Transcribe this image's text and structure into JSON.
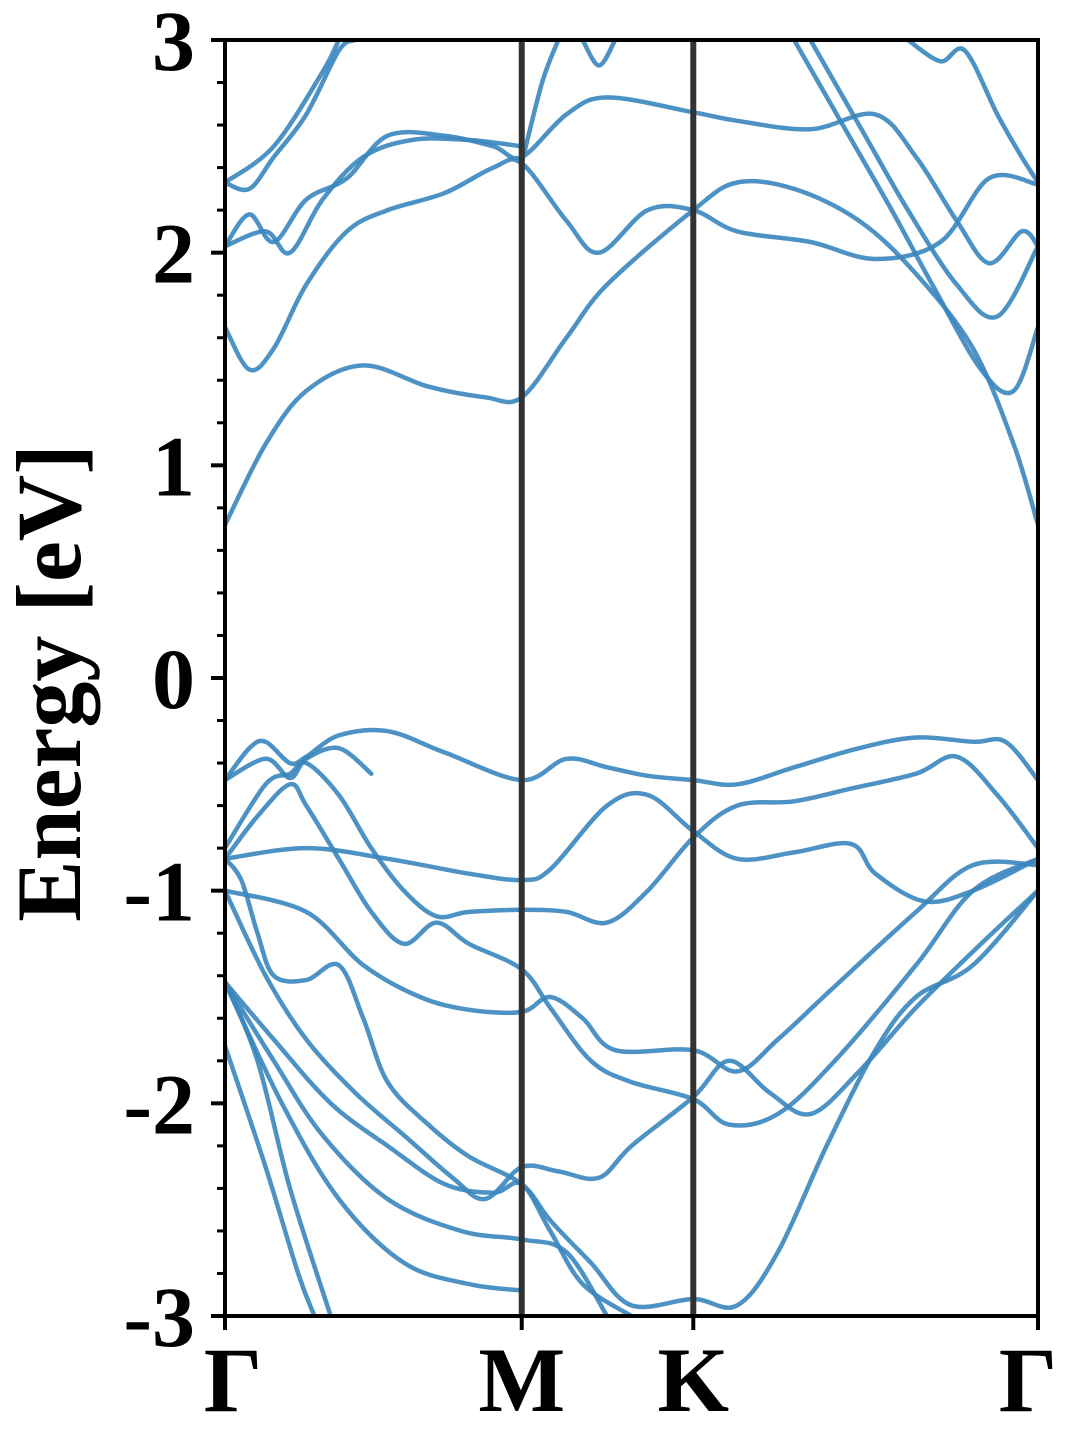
{
  "chart_data": {
    "type": "line",
    "ylabel": "Energy [eV]",
    "ylim": [
      -3,
      3
    ],
    "yticks": [
      "-3",
      "-2",
      "-1",
      "0",
      "1",
      "2",
      "3"
    ],
    "xlim": [
      0,
      1
    ],
    "kpath": [
      {
        "label": "Γ",
        "x": 0.0
      },
      {
        "label": "M",
        "x": 0.365
      },
      {
        "label": "K",
        "x": 0.576
      },
      {
        "label": "Γ",
        "x": 1.0
      }
    ],
    "line_color": "#3a86be",
    "grid": false,
    "series": [
      {
        "values": [
          [
            0,
            -1.73
          ],
          [
            0.05,
            -2.3
          ],
          [
            0.09,
            -2.8
          ],
          [
            0.11,
            -3.0
          ]
        ]
      },
      {
        "values": [
          [
            0,
            -1.43
          ],
          [
            0.04,
            -1.8
          ],
          [
            0.08,
            -2.4
          ],
          [
            0.13,
            -3.0
          ]
        ]
      },
      {
        "values": [
          [
            0,
            -1.43
          ],
          [
            0.07,
            -2.0
          ],
          [
            0.14,
            -2.45
          ],
          [
            0.22,
            -2.75
          ],
          [
            0.3,
            -2.85
          ],
          [
            0.365,
            -2.88
          ]
        ]
      },
      {
        "values": [
          [
            0,
            -1.43
          ],
          [
            0.06,
            -1.8
          ],
          [
            0.12,
            -2.15
          ],
          [
            0.2,
            -2.45
          ],
          [
            0.29,
            -2.6
          ],
          [
            0.365,
            -2.64
          ],
          [
            0.42,
            -2.7
          ],
          [
            0.47,
            -3.0
          ]
        ]
      },
      {
        "values": [
          [
            0,
            -1.43
          ],
          [
            0.06,
            -1.7
          ],
          [
            0.13,
            -2.0
          ],
          [
            0.2,
            -2.2
          ],
          [
            0.27,
            -2.38
          ],
          [
            0.33,
            -2.42
          ],
          [
            0.365,
            -2.38
          ],
          [
            0.4,
            -2.6
          ],
          [
            0.44,
            -2.85
          ],
          [
            0.5,
            -3.0
          ]
        ]
      },
      {
        "values": [
          [
            0,
            -1.0
          ],
          [
            0.05,
            -1.4
          ],
          [
            0.1,
            -1.7
          ],
          [
            0.16,
            -1.95
          ],
          [
            0.22,
            -2.15
          ],
          [
            0.28,
            -2.35
          ],
          [
            0.32,
            -2.45
          ],
          [
            0.365,
            -2.3
          ],
          [
            0.41,
            -2.32
          ],
          [
            0.46,
            -2.35
          ],
          [
            0.5,
            -2.2
          ],
          [
            0.576,
            -1.97
          ],
          [
            0.62,
            -1.8
          ],
          [
            0.67,
            -1.95
          ],
          [
            0.72,
            -2.05
          ],
          [
            0.78,
            -1.85
          ],
          [
            0.85,
            -1.55
          ],
          [
            0.93,
            -1.25
          ],
          [
            1.0,
            -1.0
          ]
        ]
      },
      {
        "values": [
          [
            0,
            -0.85
          ],
          [
            0.02,
            -0.95
          ],
          [
            0.04,
            -1.2
          ],
          [
            0.06,
            -1.4
          ],
          [
            0.1,
            -1.42
          ],
          [
            0.14,
            -1.35
          ],
          [
            0.17,
            -1.6
          ],
          [
            0.2,
            -1.9
          ],
          [
            0.25,
            -2.1
          ],
          [
            0.3,
            -2.25
          ],
          [
            0.365,
            -2.38
          ],
          [
            0.4,
            -2.55
          ],
          [
            0.45,
            -2.75
          ],
          [
            0.5,
            -2.95
          ],
          [
            0.576,
            -2.92
          ],
          [
            0.63,
            -2.95
          ],
          [
            0.68,
            -2.7
          ],
          [
            0.74,
            -2.2
          ],
          [
            0.8,
            -1.75
          ],
          [
            0.85,
            -1.5
          ],
          [
            0.92,
            -1.35
          ],
          [
            1.0,
            -1.0
          ]
        ]
      },
      {
        "values": [
          [
            0,
            -1.0
          ],
          [
            0.1,
            -1.1
          ],
          [
            0.17,
            -1.35
          ],
          [
            0.24,
            -1.5
          ],
          [
            0.3,
            -1.56
          ],
          [
            0.365,
            -1.57
          ],
          [
            0.4,
            -1.5
          ],
          [
            0.44,
            -1.6
          ],
          [
            0.48,
            -1.75
          ],
          [
            0.576,
            -1.75
          ],
          [
            0.63,
            -1.85
          ],
          [
            0.68,
            -1.7
          ],
          [
            0.75,
            -1.45
          ],
          [
            0.85,
            -1.1
          ],
          [
            0.92,
            -0.88
          ],
          [
            1.0,
            -0.88
          ]
        ]
      },
      {
        "values": [
          [
            0,
            -0.85
          ],
          [
            0.04,
            -0.65
          ],
          [
            0.08,
            -0.5
          ],
          [
            0.1,
            -0.6
          ],
          [
            0.14,
            -0.85
          ],
          [
            0.18,
            -1.1
          ],
          [
            0.22,
            -1.25
          ],
          [
            0.26,
            -1.15
          ],
          [
            0.3,
            -1.25
          ],
          [
            0.365,
            -1.37
          ],
          [
            0.4,
            -1.55
          ],
          [
            0.45,
            -1.8
          ],
          [
            0.5,
            -1.9
          ],
          [
            0.576,
            -1.98
          ],
          [
            0.62,
            -2.1
          ],
          [
            0.68,
            -2.05
          ],
          [
            0.75,
            -1.8
          ],
          [
            0.85,
            -1.35
          ],
          [
            0.92,
            -1.0
          ],
          [
            1.0,
            -0.85
          ]
        ]
      },
      {
        "values": [
          [
            0,
            -0.85
          ],
          [
            0.1,
            -0.8
          ],
          [
            0.2,
            -0.85
          ],
          [
            0.3,
            -0.92
          ],
          [
            0.365,
            -0.95
          ],
          [
            0.4,
            -0.9
          ],
          [
            0.47,
            -0.6
          ],
          [
            0.52,
            -0.55
          ],
          [
            0.576,
            -0.72
          ],
          [
            0.63,
            -0.85
          ],
          [
            0.7,
            -0.82
          ],
          [
            0.77,
            -0.78
          ],
          [
            0.8,
            -0.92
          ],
          [
            0.86,
            -1.05
          ],
          [
            0.92,
            -1.0
          ],
          [
            1.0,
            -0.85
          ]
        ]
      },
      {
        "values": [
          [
            0,
            -0.8
          ],
          [
            0.05,
            -0.5
          ],
          [
            0.08,
            -0.45
          ],
          [
            0.1,
            -0.4
          ],
          [
            0.14,
            -0.55
          ],
          [
            0.18,
            -0.8
          ],
          [
            0.22,
            -1.0
          ],
          [
            0.26,
            -1.12
          ],
          [
            0.3,
            -1.1
          ],
          [
            0.365,
            -1.09
          ],
          [
            0.42,
            -1.1
          ],
          [
            0.47,
            -1.15
          ],
          [
            0.52,
            -1.0
          ],
          [
            0.576,
            -0.75
          ],
          [
            0.63,
            -0.6
          ],
          [
            0.7,
            -0.58
          ],
          [
            0.77,
            -0.52
          ],
          [
            0.85,
            -0.45
          ],
          [
            0.9,
            -0.37
          ],
          [
            0.95,
            -0.55
          ],
          [
            1.0,
            -0.8
          ]
        ]
      },
      {
        "values": [
          [
            0,
            -0.48
          ],
          [
            0.03,
            -0.33
          ],
          [
            0.05,
            -0.3
          ],
          [
            0.08,
            -0.4
          ],
          [
            0.1,
            -0.37
          ],
          [
            0.14,
            -0.27
          ],
          [
            0.2,
            -0.25
          ],
          [
            0.27,
            -0.35
          ],
          [
            0.365,
            -0.48
          ],
          [
            0.42,
            -0.38
          ],
          [
            0.47,
            -0.42
          ],
          [
            0.52,
            -0.46
          ],
          [
            0.576,
            -0.48
          ],
          [
            0.63,
            -0.5
          ],
          [
            0.7,
            -0.42
          ],
          [
            0.78,
            -0.33
          ],
          [
            0.85,
            -0.28
          ],
          [
            0.92,
            -0.3
          ],
          [
            0.96,
            -0.3
          ],
          [
            1.0,
            -0.48
          ]
        ]
      },
      {
        "values": [
          [
            0,
            -0.48
          ],
          [
            0.05,
            -0.38
          ],
          [
            0.08,
            -0.47
          ],
          [
            0.1,
            -0.38
          ],
          [
            0.14,
            -0.33
          ],
          [
            0.18,
            -0.45
          ]
        ]
      },
      {
        "values": [
          [
            0,
            0.72
          ],
          [
            0.05,
            1.1
          ],
          [
            0.1,
            1.35
          ],
          [
            0.17,
            1.47
          ],
          [
            0.25,
            1.37
          ],
          [
            0.32,
            1.32
          ],
          [
            0.365,
            1.32
          ],
          [
            0.42,
            1.6
          ],
          [
            0.47,
            1.85
          ],
          [
            0.576,
            2.2
          ],
          [
            0.63,
            2.33
          ],
          [
            0.7,
            2.3
          ],
          [
            0.78,
            2.15
          ],
          [
            0.85,
            1.9
          ],
          [
            0.92,
            1.55
          ],
          [
            0.97,
            1.1
          ],
          [
            1.0,
            0.72
          ]
        ]
      },
      {
        "values": [
          [
            0,
            1.65
          ],
          [
            0.03,
            1.45
          ],
          [
            0.06,
            1.55
          ],
          [
            0.1,
            1.85
          ],
          [
            0.15,
            2.1
          ],
          [
            0.2,
            2.2
          ],
          [
            0.27,
            2.28
          ],
          [
            0.33,
            2.4
          ],
          [
            0.365,
            2.42
          ],
          [
            0.42,
            2.15
          ],
          [
            0.46,
            2.0
          ],
          [
            0.52,
            2.2
          ],
          [
            0.576,
            2.2
          ],
          [
            0.63,
            2.1
          ],
          [
            0.72,
            2.05
          ],
          [
            0.8,
            1.97
          ],
          [
            0.88,
            2.05
          ],
          [
            0.94,
            2.35
          ],
          [
            1.0,
            2.32
          ]
        ]
      },
      {
        "values": [
          [
            0,
            2.03
          ],
          [
            0.05,
            2.1
          ],
          [
            0.08,
            2.0
          ],
          [
            0.12,
            2.25
          ],
          [
            0.17,
            2.45
          ],
          [
            0.23,
            2.53
          ],
          [
            0.3,
            2.53
          ],
          [
            0.365,
            2.5
          ]
        ]
      },
      {
        "values": [
          [
            0,
            2.03
          ],
          [
            0.03,
            2.18
          ],
          [
            0.06,
            2.05
          ],
          [
            0.1,
            2.25
          ],
          [
            0.15,
            2.35
          ],
          [
            0.2,
            2.55
          ],
          [
            0.27,
            2.55
          ],
          [
            0.33,
            2.5
          ],
          [
            0.365,
            2.45
          ],
          [
            0.42,
            2.65
          ],
          [
            0.47,
            2.73
          ],
          [
            0.576,
            2.66
          ],
          [
            0.63,
            2.62
          ],
          [
            0.72,
            2.58
          ],
          [
            0.8,
            2.65
          ],
          [
            0.85,
            2.45
          ],
          [
            0.9,
            2.15
          ],
          [
            0.94,
            1.95
          ],
          [
            0.98,
            2.1
          ],
          [
            1.0,
            2.03
          ]
        ]
      },
      {
        "values": [
          [
            0,
            2.33
          ],
          [
            0.03,
            2.3
          ],
          [
            0.06,
            2.45
          ],
          [
            0.1,
            2.65
          ],
          [
            0.14,
            2.95
          ],
          [
            0.16,
            3.0
          ]
        ]
      },
      {
        "values": [
          [
            0,
            2.33
          ],
          [
            0.06,
            2.5
          ],
          [
            0.12,
            2.85
          ],
          [
            0.14,
            3.0
          ]
        ]
      },
      {
        "values": [
          [
            0.365,
            2.42
          ],
          [
            0.39,
            2.8
          ],
          [
            0.41,
            3.0
          ]
        ]
      },
      {
        "values": [
          [
            0.44,
            3.0
          ],
          [
            0.46,
            2.88
          ],
          [
            0.48,
            3.0
          ]
        ]
      },
      {
        "values": [
          [
            0.7,
            3.0
          ],
          [
            0.76,
            2.6
          ],
          [
            0.82,
            2.2
          ],
          [
            0.87,
            1.85
          ],
          [
            0.93,
            1.45
          ],
          [
            0.97,
            1.35
          ],
          [
            1.0,
            1.65
          ]
        ]
      },
      {
        "values": [
          [
            0.72,
            3.0
          ],
          [
            0.78,
            2.6
          ],
          [
            0.84,
            2.2
          ],
          [
            0.9,
            1.85
          ],
          [
            0.95,
            1.7
          ],
          [
            1.0,
            2.03
          ]
        ]
      },
      {
        "values": [
          [
            0.84,
            3.0
          ],
          [
            0.88,
            2.9
          ],
          [
            0.91,
            2.95
          ],
          [
            0.95,
            2.65
          ],
          [
            0.98,
            2.45
          ],
          [
            1.0,
            2.33
          ]
        ]
      }
    ]
  }
}
